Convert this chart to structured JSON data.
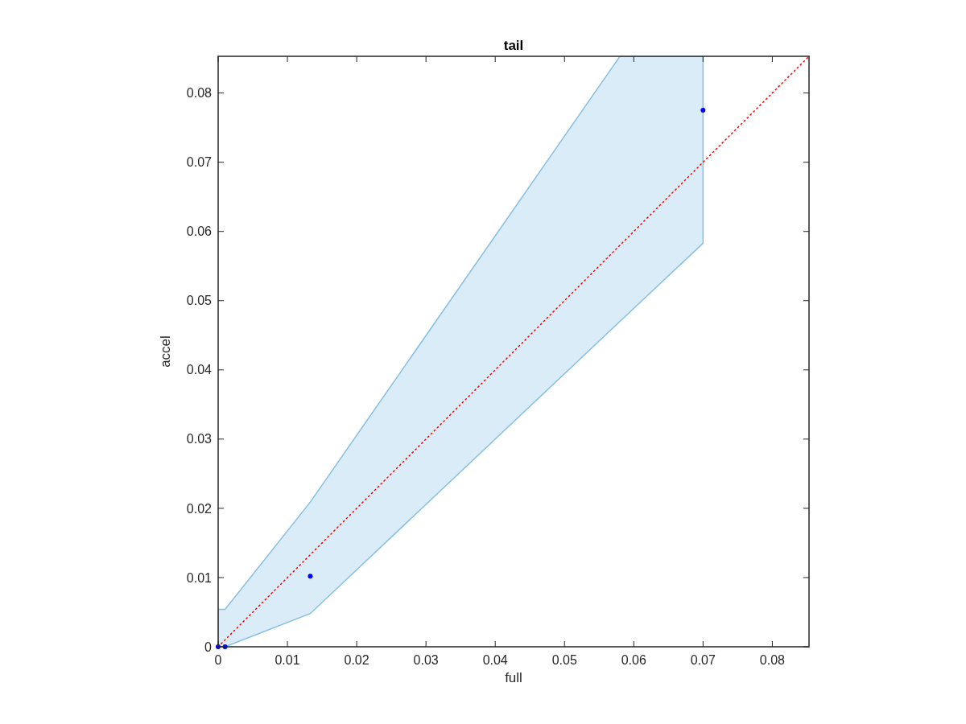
{
  "chart_data": {
    "type": "scatter",
    "title": "tail",
    "xlabel": "full",
    "ylabel": "accel",
    "xlim": [
      0,
      0.0853
    ],
    "ylim": [
      0,
      0.0853
    ],
    "xticks": [
      0,
      0.01,
      0.02,
      0.03,
      0.04,
      0.05,
      0.06,
      0.07,
      0.08
    ],
    "yticks": [
      0,
      0.01,
      0.02,
      0.03,
      0.04,
      0.05,
      0.06,
      0.07,
      0.08
    ],
    "grid": false,
    "series": [
      {
        "type": "area",
        "color": "#86bfe3",
        "x": [
          0,
          0.001,
          0.0133,
          0.058,
          0.07
        ],
        "values": [
          null,
          null,
          null,
          null,
          null
        ],
        "lower": [
          0,
          0,
          0.0048,
          0.047,
          0.0583
        ],
        "upper": [
          0.0054,
          0.0054,
          0.0209,
          0.0853,
          0.0853
        ]
      },
      {
        "type": "line",
        "color": "#ff0000",
        "line_style": "dotted",
        "marker": "none",
        "x": [
          0,
          0.0853
        ],
        "values": [
          0,
          0.0853
        ]
      },
      {
        "color": "#0000ff",
        "marker": "circle",
        "x": [
          0,
          0.001,
          0.0133,
          0.07
        ],
        "values": [
          0,
          0,
          0.0102,
          0.0775
        ]
      }
    ]
  }
}
